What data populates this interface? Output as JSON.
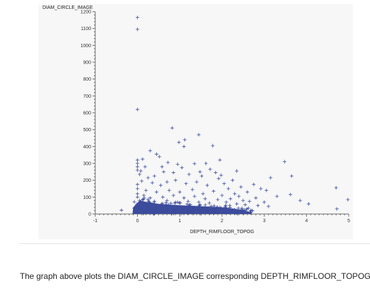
{
  "caption": "The graph above plots the DIAM_CIRCLE_IMAGE corresponding DEPTH_RIMFLOOR_TOPOG.",
  "chart_data": {
    "type": "scatter",
    "title": "",
    "xlabel": "DEPTH_RIMFLOOR_TOPOG",
    "ylabel": "DIAM_CIRCLE_IMAGE",
    "xlim": [
      -1,
      5
    ],
    "ylim": [
      0,
      1200
    ],
    "xticks": [
      -1,
      0,
      1,
      2,
      3,
      4,
      5
    ],
    "yticks": [
      0,
      100,
      200,
      300,
      400,
      500,
      600,
      700,
      800,
      900,
      1000,
      1100,
      1200
    ],
    "marker": "+",
    "marker_color": "#3b4a9a",
    "grid": false,
    "dense_region": "thousands of overlapping points with DIAM_CIRCLE_IMAGE below about 60 for DEPTH_RIMFLOOR_TOPOG from about -0.1 to 2.6",
    "points": [
      {
        "x": 0.0,
        "y": 1165
      },
      {
        "x": 0.0,
        "y": 1095
      },
      {
        "x": 0.0,
        "y": 620
      },
      {
        "x": 0.82,
        "y": 510
      },
      {
        "x": 1.45,
        "y": 470
      },
      {
        "x": 1.12,
        "y": 440
      },
      {
        "x": 0.98,
        "y": 425
      },
      {
        "x": 1.1,
        "y": 400
      },
      {
        "x": 1.78,
        "y": 405
      },
      {
        "x": 0.3,
        "y": 375
      },
      {
        "x": 0.45,
        "y": 355
      },
      {
        "x": 0.52,
        "y": 340
      },
      {
        "x": 0.0,
        "y": 320
      },
      {
        "x": 0.12,
        "y": 325
      },
      {
        "x": 0.0,
        "y": 300
      },
      {
        "x": 0.0,
        "y": 280
      },
      {
        "x": 0.18,
        "y": 280
      },
      {
        "x": 0.72,
        "y": 305
      },
      {
        "x": 0.95,
        "y": 295
      },
      {
        "x": 1.05,
        "y": 275
      },
      {
        "x": 1.35,
        "y": 298
      },
      {
        "x": 1.62,
        "y": 300
      },
      {
        "x": 1.72,
        "y": 265
      },
      {
        "x": 1.95,
        "y": 320
      },
      {
        "x": 2.35,
        "y": 255
      },
      {
        "x": 0.62,
        "y": 250
      },
      {
        "x": 0.85,
        "y": 245
      },
      {
        "x": 1.22,
        "y": 235
      },
      {
        "x": 1.52,
        "y": 225
      },
      {
        "x": 1.85,
        "y": 245
      },
      {
        "x": 0.05,
        "y": 235
      },
      {
        "x": 0.25,
        "y": 215
      },
      {
        "x": 0.4,
        "y": 225
      },
      {
        "x": 1.92,
        "y": 210
      },
      {
        "x": 2.05,
        "y": 180
      },
      {
        "x": 2.25,
        "y": 200
      },
      {
        "x": 2.45,
        "y": 160
      },
      {
        "x": 2.75,
        "y": 175
      },
      {
        "x": 2.92,
        "y": 150
      },
      {
        "x": 3.15,
        "y": 215
      },
      {
        "x": 3.48,
        "y": 310
      },
      {
        "x": 3.65,
        "y": 225
      },
      {
        "x": 3.05,
        "y": 140
      },
      {
        "x": 3.3,
        "y": 105
      },
      {
        "x": 3.62,
        "y": 115
      },
      {
        "x": 3.85,
        "y": 80
      },
      {
        "x": 4.05,
        "y": 60
      },
      {
        "x": 4.7,
        "y": 155
      },
      {
        "x": 4.72,
        "y": 30
      },
      {
        "x": 4.98,
        "y": 85
      },
      {
        "x": -0.38,
        "y": 22
      },
      {
        "x": 2.6,
        "y": 130
      },
      {
        "x": 2.8,
        "y": 95
      },
      {
        "x": 3.0,
        "y": 70
      },
      {
        "x": 2.5,
        "y": 80
      },
      {
        "x": 2.3,
        "y": 120
      },
      {
        "x": 2.15,
        "y": 150
      },
      {
        "x": 1.65,
        "y": 170
      },
      {
        "x": 1.4,
        "y": 190
      },
      {
        "x": 1.15,
        "y": 180
      },
      {
        "x": 0.9,
        "y": 200
      },
      {
        "x": 0.7,
        "y": 190
      },
      {
        "x": 0.55,
        "y": 170
      },
      {
        "x": 0.35,
        "y": 185
      },
      {
        "x": 0.1,
        "y": 195
      },
      {
        "x": 0.0,
        "y": 175
      },
      {
        "x": 0.0,
        "y": 150
      },
      {
        "x": 0.2,
        "y": 140
      },
      {
        "x": 0.45,
        "y": 130
      },
      {
        "x": 0.75,
        "y": 140
      },
      {
        "x": 1.0,
        "y": 130
      },
      {
        "x": 1.3,
        "y": 145
      },
      {
        "x": 1.55,
        "y": 120
      },
      {
        "x": 1.8,
        "y": 135
      },
      {
        "x": 2.0,
        "y": 110
      },
      {
        "x": 2.2,
        "y": 90
      },
      {
        "x": 2.4,
        "y": 105
      },
      {
        "x": 2.65,
        "y": 75
      },
      {
        "x": 0.0,
        "y": 120
      },
      {
        "x": 0.0,
        "y": 100
      },
      {
        "x": 0.15,
        "y": 110
      },
      {
        "x": 0.3,
        "y": 95
      },
      {
        "x": 0.6,
        "y": 100
      },
      {
        "x": 0.85,
        "y": 110
      },
      {
        "x": 1.1,
        "y": 95
      },
      {
        "x": 1.35,
        "y": 105
      },
      {
        "x": 1.6,
        "y": 90
      },
      {
        "x": 1.9,
        "y": 85
      },
      {
        "x": 2.1,
        "y": 70
      },
      {
        "x": 2.35,
        "y": 60
      },
      {
        "x": 0.05,
        "y": 80
      },
      {
        "x": 0.4,
        "y": 75
      },
      {
        "x": 0.7,
        "y": 80
      },
      {
        "x": 0.95,
        "y": 70
      },
      {
        "x": 1.2,
        "y": 75
      },
      {
        "x": 1.45,
        "y": 70
      },
      {
        "x": 1.7,
        "y": 65
      },
      {
        "x": 2.55,
        "y": 55
      },
      {
        "x": 2.85,
        "y": 50
      },
      {
        "x": 3.1,
        "y": 45
      },
      {
        "x": 0.0,
        "y": 260
      },
      {
        "x": 0.08,
        "y": 255
      },
      {
        "x": 0.58,
        "y": 280
      },
      {
        "x": 1.48,
        "y": 250
      },
      {
        "x": 1.98,
        "y": 230
      }
    ]
  }
}
